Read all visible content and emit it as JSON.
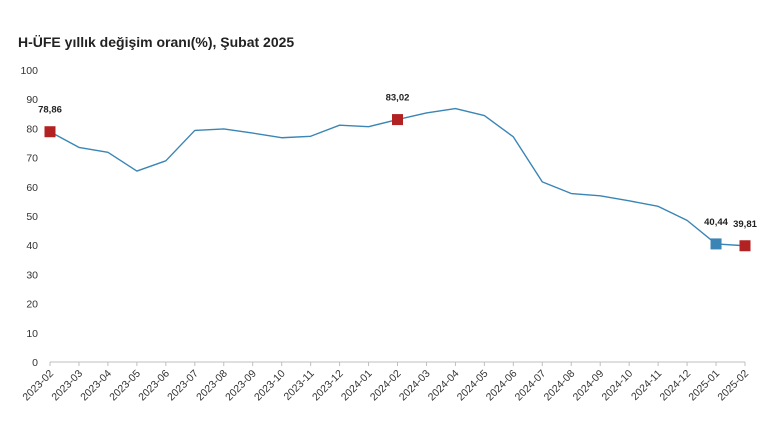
{
  "title": "H-ÜFE yıllık değişim oranı(%), Şubat 2025",
  "chart_data": {
    "type": "line",
    "title": "H-ÜFE yıllık değişim oranı(%), Şubat 2025",
    "xlabel": "",
    "ylabel": "",
    "ylim": [
      0,
      100
    ],
    "yticks": [
      0,
      10,
      20,
      30,
      40,
      50,
      60,
      70,
      80,
      90,
      100
    ],
    "grid": false,
    "legend": "none",
    "line_color": "#3a85b5",
    "categories": [
      "2023-02",
      "2023-03",
      "2023-04",
      "2023-05",
      "2023-06",
      "2023-07",
      "2023-08",
      "2023-09",
      "2023-10",
      "2023-11",
      "2023-12",
      "2024-01",
      "2024-02",
      "2024-03",
      "2024-04",
      "2024-05",
      "2024-06",
      "2024-07",
      "2024-08",
      "2024-09",
      "2024-10",
      "2024-11",
      "2024-12",
      "2025-01",
      "2025-02"
    ],
    "series": [
      {
        "values": [
          78.86,
          73.5,
          71.8,
          65.4,
          68.9,
          79.3,
          79.8,
          78.4,
          76.8,
          77.3,
          81.1,
          80.6,
          83.02,
          85.3,
          86.8,
          84.4,
          77.1,
          61.7,
          57.7,
          56.9,
          55.2,
          53.3,
          48.5,
          40.44,
          39.81
        ]
      }
    ],
    "markers": [
      {
        "category": "2023-02",
        "value": 78.86,
        "label": "78,86",
        "color": "#b22222"
      },
      {
        "category": "2024-02",
        "value": 83.02,
        "label": "83,02",
        "color": "#b22222"
      },
      {
        "category": "2025-01",
        "value": 40.44,
        "label": "40,44",
        "color": "#3a85b5"
      },
      {
        "category": "2025-02",
        "value": 39.81,
        "label": "39,81",
        "color": "#b22222"
      }
    ]
  }
}
